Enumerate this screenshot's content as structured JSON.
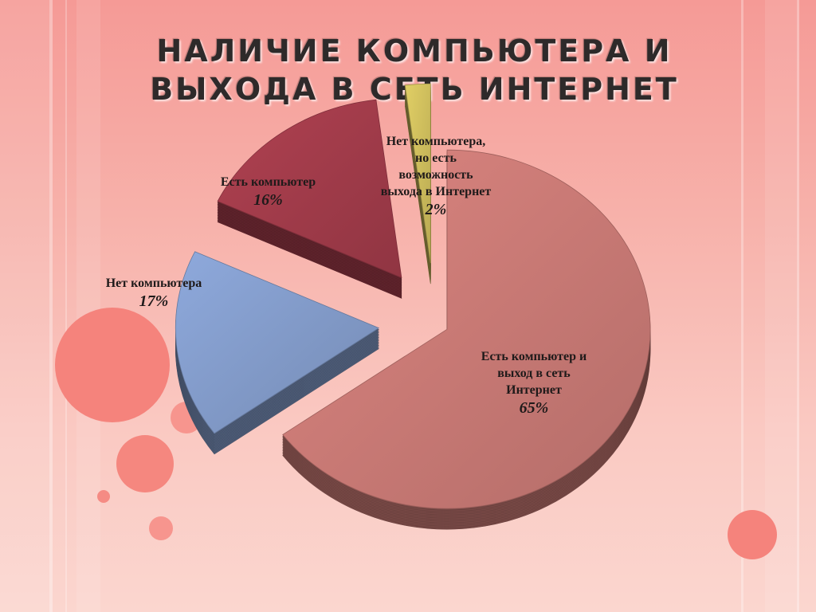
{
  "slide": {
    "title_line1": "НАЛИЧИЕ КОМПЬЮТЕРА И",
    "title_line2": "ВЫХОДА В СЕТЬ ИНТЕРНЕТ"
  },
  "chart_data": {
    "type": "pie",
    "title": "НАЛИЧИЕ КОМПЬЮТЕРА И ВЫХОДА В СЕТЬ ИНТЕРНЕТ",
    "exploded": true,
    "three_d": true,
    "slices": [
      {
        "label": "Есть компьютер и\nвыход в сеть\nИнтернет",
        "value": 65,
        "value_label": "65%",
        "color": "#c47772"
      },
      {
        "label": "Нет компьютера",
        "value": 17,
        "value_label": "17%",
        "color": "#7f97c4"
      },
      {
        "label": "Есть компьютер",
        "value": 16,
        "value_label": "16%",
        "color": "#9d3a48"
      },
      {
        "label": "Нет компьютера,\nно есть\nвозможность\nвыхода в Интернет",
        "value": 2,
        "value_label": "2%",
        "color": "#c9b95a"
      }
    ]
  },
  "decor_colors": {
    "circle": "#f58b84",
    "circle_light": "#f7a39c"
  }
}
